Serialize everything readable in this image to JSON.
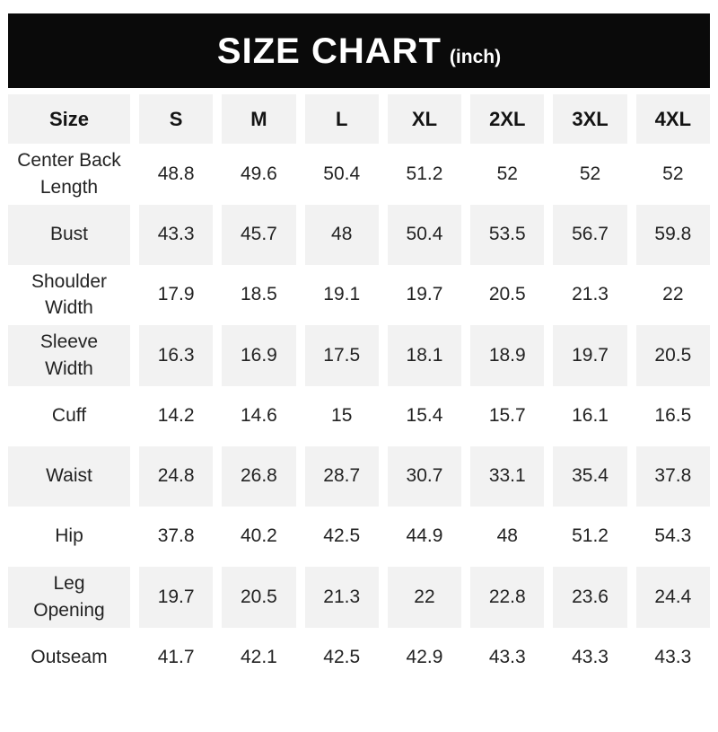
{
  "title": {
    "main": "SIZE CHART",
    "unit": "(inch)"
  },
  "colors": {
    "title_bar_bg": "#0a0a0a",
    "title_text": "#ffffff",
    "row_alt_bg": "#f2f2f2",
    "row_bg": "#ffffff",
    "cell_text": "#232323"
  },
  "chart_data": {
    "type": "table",
    "title": "SIZE CHART",
    "unit_label": "(inch)",
    "columns": [
      "Size",
      "S",
      "M",
      "L",
      "XL",
      "2XL",
      "3XL",
      "4XL"
    ],
    "rows": [
      {
        "label": "Center Back\nLength",
        "values": [
          "48.8",
          "49.6",
          "50.4",
          "51.2",
          "52",
          "52",
          "52"
        ]
      },
      {
        "label": "Bust",
        "values": [
          "43.3",
          "45.7",
          "48",
          "50.4",
          "53.5",
          "56.7",
          "59.8"
        ]
      },
      {
        "label": "Shoulder\nWidth",
        "values": [
          "17.9",
          "18.5",
          "19.1",
          "19.7",
          "20.5",
          "21.3",
          "22"
        ]
      },
      {
        "label": "Sleeve\nWidth",
        "values": [
          "16.3",
          "16.9",
          "17.5",
          "18.1",
          "18.9",
          "19.7",
          "20.5"
        ]
      },
      {
        "label": "Cuff",
        "values": [
          "14.2",
          "14.6",
          "15",
          "15.4",
          "15.7",
          "16.1",
          "16.5"
        ]
      },
      {
        "label": "Waist",
        "values": [
          "24.8",
          "26.8",
          "28.7",
          "30.7",
          "33.1",
          "35.4",
          "37.8"
        ]
      },
      {
        "label": "Hip",
        "values": [
          "37.8",
          "40.2",
          "42.5",
          "44.9",
          "48",
          "51.2",
          "54.3"
        ]
      },
      {
        "label": "Leg\nOpening",
        "values": [
          "19.7",
          "20.5",
          "21.3",
          "22",
          "22.8",
          "23.6",
          "24.4"
        ]
      },
      {
        "label": "Outseam",
        "values": [
          "41.7",
          "42.1",
          "42.5",
          "42.9",
          "43.3",
          "43.3",
          "43.3"
        ]
      }
    ]
  }
}
